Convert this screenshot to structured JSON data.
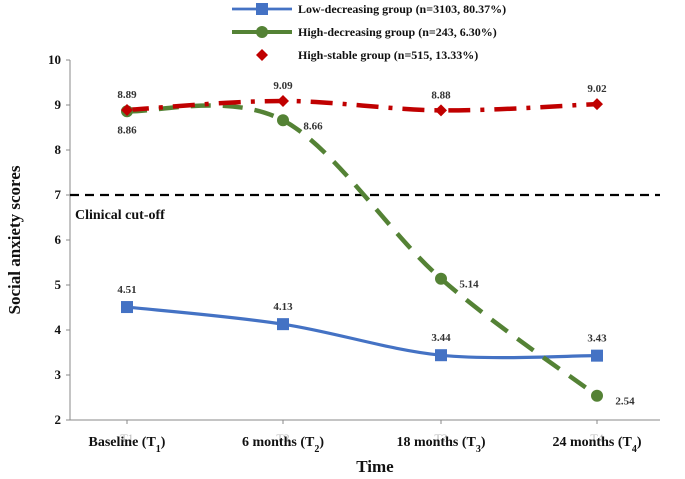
{
  "chart_data": {
    "type": "line",
    "ylabel": "Social anxiety scores",
    "xlabel": "Time",
    "ylim": [
      2,
      10
    ],
    "yticks": [
      2,
      3,
      4,
      5,
      6,
      7,
      8,
      9,
      10
    ],
    "categories": [
      {
        "main": "Baseline (T",
        "sub": "1",
        "close": ")",
        "ghost": "T1"
      },
      {
        "main": "6 months (T",
        "sub": "2",
        "close": ")",
        "ghost": "T2"
      },
      {
        "main": "18 months (T",
        "sub": "3",
        "close": ")",
        "ghost": "T3"
      },
      {
        "main": "24 months (T",
        "sub": "4",
        "close": ")",
        "ghost": "T4"
      }
    ],
    "series": [
      {
        "name": "Low-decreasing group",
        "legend": "Low-decreasing group (n=3103, 80.37%)",
        "color": "#4472C4",
        "marker": "square",
        "style": "solid",
        "values": [
          4.51,
          4.13,
          3.44,
          3.43
        ],
        "labels": [
          "4.51",
          "4.13",
          "3.44",
          "3.43"
        ]
      },
      {
        "name": "High-decreasing group",
        "legend": "High-decreasing group (n=243, 6.30%)",
        "color": "#548235",
        "marker": "circle",
        "style": "dashed",
        "values": [
          8.86,
          8.66,
          5.14,
          2.54
        ],
        "labels": [
          "8.86",
          "8.66",
          "5.14",
          "2.54"
        ]
      },
      {
        "name": "High-stable group",
        "legend": "High-stable group (n=515, 13.33%)",
        "color": "#C00000",
        "marker": "diamond",
        "style": "dashdot",
        "values": [
          8.89,
          9.09,
          8.88,
          9.02
        ],
        "labels": [
          "8.89",
          "9.09",
          "8.88",
          "9.02"
        ]
      }
    ],
    "reference_line": {
      "value": 7,
      "label": "Clinical cut-off",
      "color": "#000000"
    }
  }
}
